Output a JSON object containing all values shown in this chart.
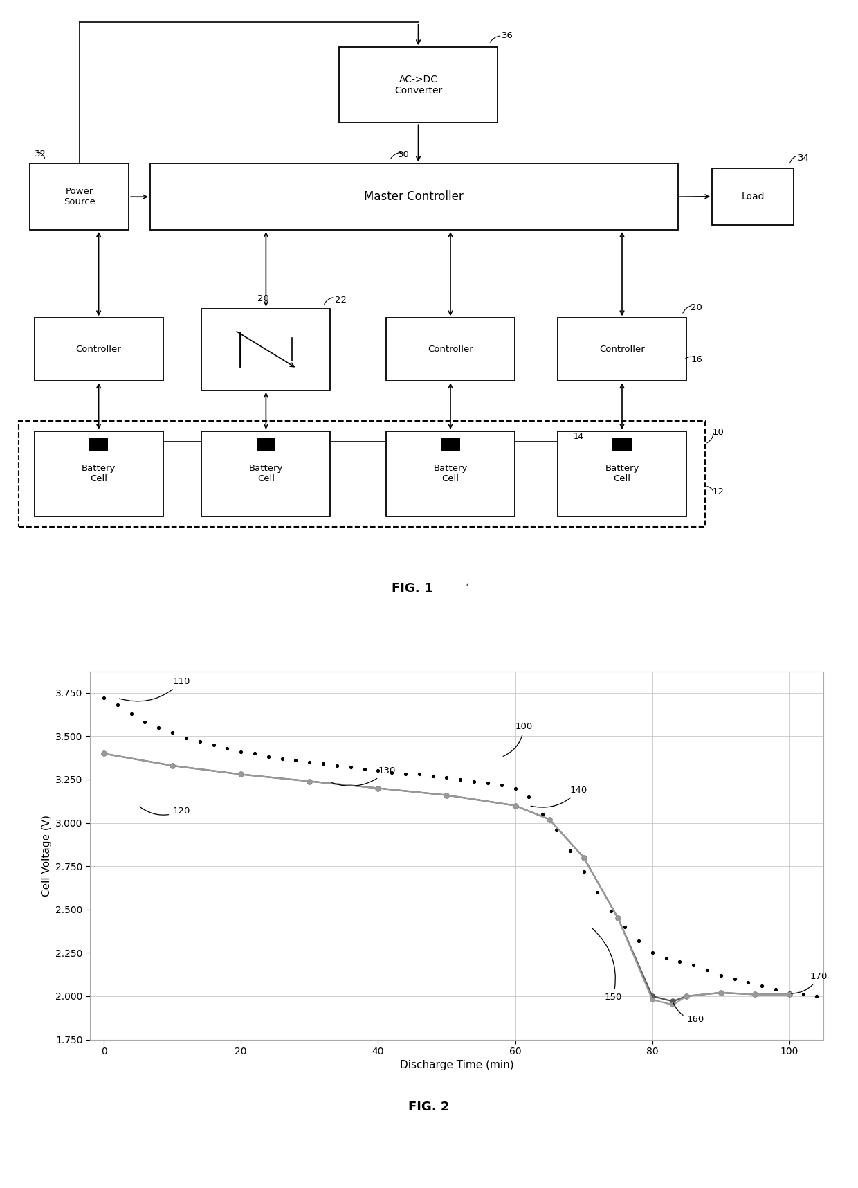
{
  "fig2": {
    "ylabel": "Cell Voltage (V)",
    "xlabel": "Discharge Time (min)",
    "ylim": [
      1.75,
      3.875
    ],
    "xlim": [
      -2,
      105
    ],
    "yticks": [
      1.75,
      2.0,
      2.25,
      2.5,
      2.75,
      3.0,
      3.25,
      3.5,
      3.75
    ],
    "xticks": [
      0,
      20,
      40,
      60,
      80,
      100
    ],
    "typical_x": [
      0,
      10,
      20,
      30,
      40,
      50,
      60,
      65,
      70,
      75,
      80,
      83,
      85,
      90,
      95,
      100
    ],
    "typical_y": [
      3.4,
      3.33,
      3.28,
      3.24,
      3.2,
      3.16,
      3.1,
      3.02,
      2.8,
      2.45,
      2.0,
      1.97,
      2.0,
      2.02,
      2.01,
      2.01
    ],
    "boems_wo_x": [
      0,
      10,
      20,
      30,
      40,
      50,
      60,
      65,
      70,
      75,
      80,
      83,
      85,
      90,
      95,
      100
    ],
    "boems_wo_y": [
      3.4,
      3.33,
      3.28,
      3.24,
      3.2,
      3.16,
      3.1,
      3.02,
      2.8,
      2.45,
      1.98,
      1.95,
      2.0,
      2.02,
      2.01,
      2.01
    ],
    "boems_w_x": [
      0,
      2,
      4,
      6,
      8,
      10,
      12,
      14,
      16,
      18,
      20,
      22,
      24,
      26,
      28,
      30,
      32,
      34,
      36,
      38,
      40,
      42,
      44,
      46,
      48,
      50,
      52,
      54,
      56,
      58,
      60,
      62,
      64,
      66,
      68,
      70,
      72,
      74,
      76,
      78,
      80,
      82,
      84,
      86,
      88,
      90,
      92,
      94,
      96,
      98,
      100,
      102,
      104
    ],
    "boems_w_y": [
      3.72,
      3.68,
      3.63,
      3.58,
      3.55,
      3.52,
      3.49,
      3.47,
      3.45,
      3.43,
      3.41,
      3.4,
      3.38,
      3.37,
      3.36,
      3.35,
      3.34,
      3.33,
      3.32,
      3.31,
      3.3,
      3.29,
      3.28,
      3.28,
      3.27,
      3.26,
      3.25,
      3.24,
      3.23,
      3.22,
      3.2,
      3.15,
      3.05,
      2.96,
      2.84,
      2.72,
      2.6,
      2.49,
      2.4,
      2.32,
      2.25,
      2.22,
      2.2,
      2.18,
      2.15,
      2.12,
      2.1,
      2.08,
      2.06,
      2.04,
      2.02,
      2.01,
      2.0
    ],
    "ytick_labels": [
      "1.750",
      "2.000",
      "2.250",
      "2.500",
      "2.750",
      "3.000",
      "3.250",
      "3.500",
      "3.750"
    ],
    "xtick_labels": [
      "0",
      "20",
      "40",
      "60",
      "80",
      "100"
    ]
  }
}
